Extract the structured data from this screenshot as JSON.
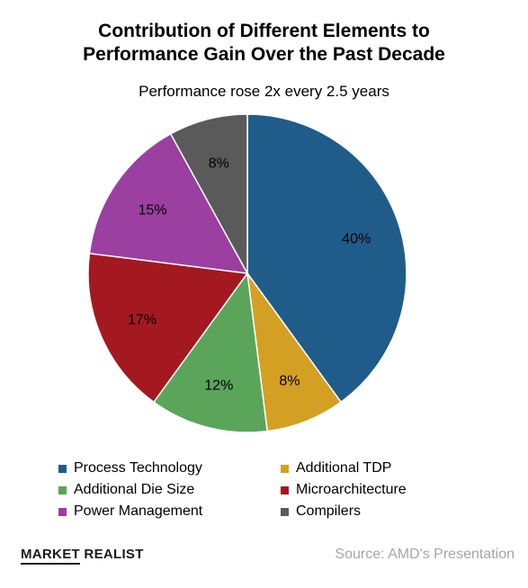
{
  "chart_data": {
    "type": "pie",
    "title_line1": "Contribution of Different Elements to",
    "title_line2": "Performance Gain Over the Past Decade",
    "subtitle": "Performance rose 2x every 2.5 years",
    "slices": [
      {
        "label": "Process Technology",
        "value": 40,
        "display": "40%",
        "color": "#1f5c8a"
      },
      {
        "label": "Additional TDP",
        "value": 8,
        "display": "8%",
        "color": "#d4a023"
      },
      {
        "label": "Additional Die Size",
        "value": 12,
        "display": "12%",
        "color": "#5aa55a"
      },
      {
        "label": "Microarchitecture",
        "value": 17,
        "display": "17%",
        "color": "#a3191f"
      },
      {
        "label": "Power Management",
        "value": 15,
        "display": "15%",
        "color": "#9b3fa0"
      },
      {
        "label": "Compilers",
        "value": 8,
        "display": "8%",
        "color": "#5a5a5a"
      }
    ],
    "legend_placement": "bottom"
  },
  "footer": {
    "brand_part1": "MARKET",
    "brand_part2": " REALIST",
    "source": "Source: AMD's Presentation"
  }
}
